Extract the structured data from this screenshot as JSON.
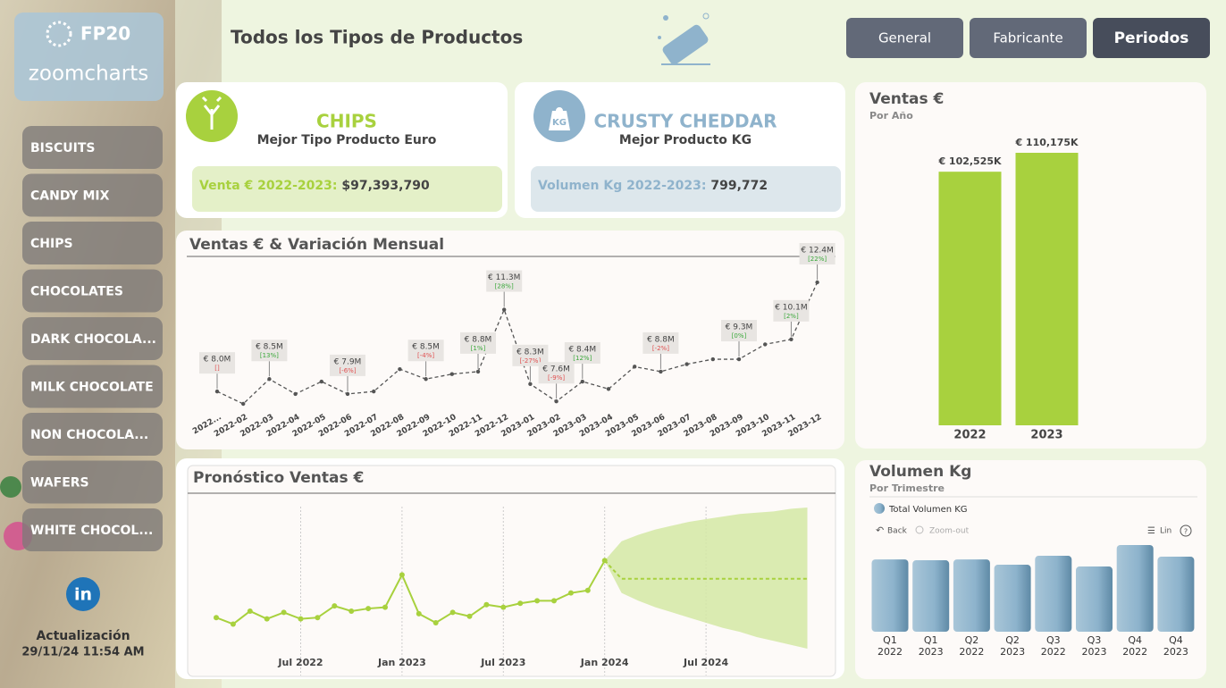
{
  "brand": {
    "name": "FP20",
    "product": "zoomcharts"
  },
  "sidebar": {
    "items": [
      "BISCUITS",
      "CANDY MIX",
      "CHIPS",
      "CHOCOLATES",
      "DARK CHOCOLA...",
      "MILK CHOCOLATE",
      "NON CHOCOLA...",
      "WAFERS",
      "WHITE CHOCOL..."
    ],
    "linkedin": "in",
    "update_label": "Actualización",
    "update_time": "29/11/24 11:54 AM"
  },
  "header": {
    "title": "Todos los Tipos de Productos",
    "tabs": [
      "General",
      "Fabricante",
      "Periodos"
    ]
  },
  "cards": [
    {
      "value_title": "CHIPS",
      "subtitle": "Mejor Tipo Producto Euro",
      "metric_label": "Venta € 2022-2023:",
      "metric_value": "$97,393,790"
    },
    {
      "icon_text": "KG",
      "value_title": "CRUSTY CHEDDAR",
      "subtitle": "Mejor Producto KG",
      "metric_label": "Volumen Kg 2022-2023:",
      "metric_value": "799,772"
    }
  ],
  "chart_data": [
    {
      "type": "line",
      "title": "Ventas € & Variación Mensual",
      "categories": [
        "2022...",
        "2022-02",
        "2022-03",
        "2022-04",
        "2022-05",
        "2022-06",
        "2022-07",
        "2022-08",
        "2022-09",
        "2022-10",
        "2022-11",
        "2022-12",
        "2023-01",
        "2023-02",
        "2023-03",
        "2023-04",
        "2023-05",
        "2023-06",
        "2023-07",
        "2023-08",
        "2023-09",
        "2023-10",
        "2023-11",
        "2023-12"
      ],
      "values": [
        8.0,
        7.5,
        8.5,
        7.9,
        8.4,
        7.9,
        8.0,
        8.9,
        8.5,
        8.7,
        8.8,
        11.3,
        8.3,
        7.6,
        8.4,
        8.1,
        9.0,
        8.8,
        9.1,
        9.3,
        9.3,
        9.9,
        10.1,
        12.4
      ],
      "value_labels": [
        "€ 8.0M",
        null,
        "€ 8.5M",
        null,
        null,
        "€ 7.9M",
        null,
        null,
        "€ 8.5M",
        null,
        "€ 8.8M",
        "€ 11.3M",
        "€ 8.3M",
        "€ 7.6M",
        "€ 8.4M",
        null,
        null,
        "€ 8.8M",
        null,
        null,
        "€ 9.3M",
        null,
        "€ 10.1M",
        "€ 12.4M"
      ],
      "variation_labels": [
        "[]",
        null,
        "[13%]",
        null,
        null,
        "[-6%]",
        null,
        null,
        "[-4%]",
        null,
        "[1%]",
        "[28%]",
        "[-27%]",
        "[-9%]",
        "[12%]",
        null,
        null,
        "[-2%]",
        null,
        null,
        "[0%]",
        null,
        "[2%]",
        "[22%]"
      ],
      "color": "#555555"
    },
    {
      "type": "forecast",
      "title": "Pronóstico Ventas €",
      "x": [
        "Feb 2022",
        "Mar 2022",
        "Apr 2022",
        "May 2022",
        "Jun 2022",
        "Jul 2022",
        "Aug 2022",
        "Sep 2022",
        "Oct 2022",
        "Nov 2022",
        "Dec 2022",
        "Jan 2023",
        "Feb 2023",
        "Mar 2023",
        "Apr 2023",
        "May 2023",
        "Jun 2023",
        "Jul 2023",
        "Aug 2023",
        "Sep 2023",
        "Oct 2023",
        "Nov 2023",
        "Dec 2023",
        "Jan 2024"
      ],
      "values": [
        8.0,
        7.5,
        8.5,
        7.9,
        8.4,
        7.9,
        8.0,
        8.9,
        8.5,
        8.7,
        8.8,
        11.3,
        8.3,
        7.6,
        8.4,
        8.1,
        9.0,
        8.8,
        9.1,
        9.3,
        9.3,
        9.9,
        10.1,
        12.4
      ],
      "forecast_x": [
        "Feb 2024",
        "Mar 2024",
        "Apr 2024",
        "May 2024",
        "Jun 2024",
        "Jul 2024",
        "Aug 2024",
        "Sep 2024",
        "Oct 2024",
        "Nov 2024",
        "Dec 2024",
        "Jan 2025"
      ],
      "forecast_values": [
        11.0,
        11.0,
        11.0,
        11.0,
        11.0,
        11.0,
        11.0,
        11.0,
        11.0,
        11.0,
        11.0,
        11.0
      ],
      "forecast_upper": [
        13.9,
        14.4,
        14.8,
        15.1,
        15.4,
        15.6,
        15.8,
        16.0,
        16.1,
        16.2,
        16.4,
        16.5
      ],
      "forecast_lower": [
        9.9,
        9.3,
        8.8,
        8.4,
        8.0,
        7.6,
        7.2,
        6.9,
        6.5,
        6.2,
        5.9,
        5.6
      ],
      "xticks": [
        "Jul 2022",
        "Jan 2023",
        "Jul 2023",
        "Jan 2024",
        "Jul 2024"
      ],
      "grid": true,
      "color": "#a8d13e",
      "band_color": "#d4e8a4"
    },
    {
      "type": "bar",
      "title": "Ventas €",
      "subtitle": "Por Año",
      "categories": [
        "2022",
        "2023"
      ],
      "values": [
        102525,
        110175
      ],
      "value_labels": [
        "€ 102,525K",
        "€ 110,175K"
      ],
      "color": "#a8d13e"
    },
    {
      "type": "bar",
      "title": "Volumen Kg",
      "subtitle": "Por Trimestre",
      "legend": "Total Volumen KG",
      "controls": [
        "Back",
        "Zoom-out",
        "Lin"
      ],
      "categories": [
        [
          "Q1",
          "2022"
        ],
        [
          "Q1",
          "2023"
        ],
        [
          "Q2",
          "2022"
        ],
        [
          "Q2",
          "2023"
        ],
        [
          "Q3",
          "2022"
        ],
        [
          "Q3",
          "2023"
        ],
        [
          "Q4",
          "2022"
        ],
        [
          "Q4",
          "2023"
        ]
      ],
      "values": [
        98700,
        97500,
        98700,
        91400,
        103600,
        89000,
        118300,
        102400
      ],
      "color": "#8db3cc"
    }
  ]
}
